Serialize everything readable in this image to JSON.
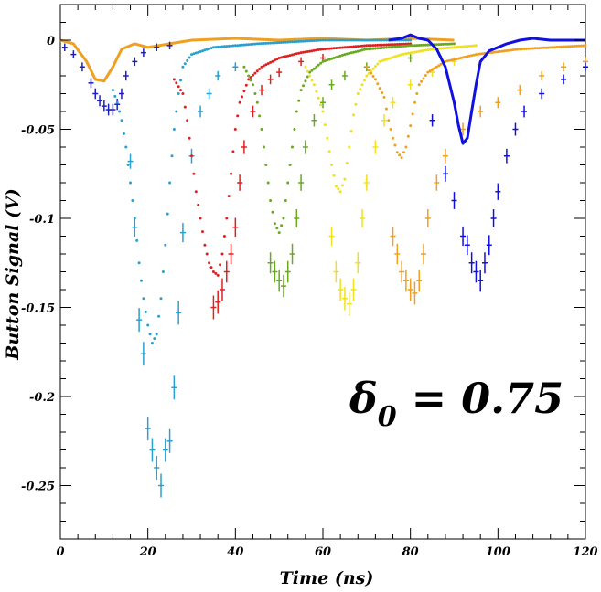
{
  "chart_data": {
    "type": "scatter",
    "xlabel": "Time (ns)",
    "ylabel": "Button Signal (V)",
    "xlim": [
      0,
      120
    ],
    "ylim": [
      -0.28,
      0.02
    ],
    "xticks": [
      0,
      20,
      40,
      60,
      80,
      100,
      120
    ],
    "yticks": [
      0,
      -0.05,
      -0.1,
      -0.15,
      -0.2,
      -0.25
    ],
    "xtick_labels": [
      "0",
      "20",
      "40",
      "60",
      "80",
      "100",
      "120"
    ],
    "ytick_labels": [
      "0",
      "-0.05",
      "-0.1",
      "-0.15",
      "-0.2",
      "-0.25"
    ],
    "grid": false,
    "annotation": {
      "symbol": "δ",
      "subscript": "0",
      "text": " = 0.75"
    },
    "colors": {
      "navy": "#1f1fbf",
      "sky": "#2aa0d0",
      "red": "#e02020",
      "green": "#6aa820",
      "yellow": "#f0e020",
      "orange": "#f0a020",
      "blue": "#1010e0"
    },
    "series": [
      {
        "color": "#f0a020",
        "style": "line",
        "points": [
          [
            0,
            0
          ],
          [
            3,
            -0.002
          ],
          [
            6,
            -0.012
          ],
          [
            8,
            -0.022
          ],
          [
            10,
            -0.023
          ],
          [
            12,
            -0.015
          ],
          [
            14,
            -0.005
          ],
          [
            17,
            -0.002
          ],
          [
            20,
            -0.004
          ],
          [
            25,
            -0.002
          ],
          [
            30,
            0
          ],
          [
            40,
            0.001
          ],
          [
            50,
            0
          ],
          [
            60,
            0.001
          ],
          [
            70,
            0
          ],
          [
            80,
            0.001
          ],
          [
            90,
            0
          ]
        ]
      },
      {
        "color": "#1f1fbf",
        "style": "cross",
        "points": [
          [
            1,
            -0.004
          ],
          [
            3,
            -0.008
          ],
          [
            5,
            -0.015
          ],
          [
            7,
            -0.024
          ],
          [
            8,
            -0.03
          ],
          [
            9,
            -0.034
          ],
          [
            10,
            -0.037
          ],
          [
            11,
            -0.039
          ],
          [
            12,
            -0.039
          ],
          [
            13,
            -0.036
          ],
          [
            14,
            -0.03
          ],
          [
            15,
            -0.02
          ],
          [
            17,
            -0.012
          ],
          [
            19,
            -0.007
          ],
          [
            22,
            -0.004
          ],
          [
            25,
            -0.003
          ]
        ]
      },
      {
        "color": "#2aa0d0",
        "style": "dots",
        "points": [
          [
            12,
            -0.028
          ],
          [
            13,
            -0.035
          ],
          [
            14,
            -0.045
          ],
          [
            15,
            -0.06
          ],
          [
            16,
            -0.08
          ],
          [
            17,
            -0.1
          ],
          [
            18,
            -0.125
          ],
          [
            19,
            -0.145
          ],
          [
            20,
            -0.16
          ],
          [
            21,
            -0.17
          ],
          [
            22,
            -0.165
          ],
          [
            23,
            -0.145
          ],
          [
            24,
            -0.115
          ],
          [
            25,
            -0.08
          ],
          [
            26,
            -0.05
          ],
          [
            27,
            -0.03
          ],
          [
            28,
            -0.015
          ],
          [
            30,
            -0.008
          ],
          [
            35,
            -0.004
          ],
          [
            45,
            -0.002
          ],
          [
            60,
            0
          ],
          [
            80,
            0
          ]
        ]
      },
      {
        "color": "#2aa0d0",
        "style": "cross",
        "points": [
          [
            16,
            -0.068
          ],
          [
            17,
            -0.105
          ],
          [
            18,
            -0.157
          ],
          [
            19,
            -0.176
          ],
          [
            20,
            -0.218
          ],
          [
            21,
            -0.23
          ],
          [
            22,
            -0.24
          ],
          [
            23,
            -0.25
          ],
          [
            24,
            -0.23
          ],
          [
            25,
            -0.225
          ],
          [
            26,
            -0.195
          ],
          [
            27,
            -0.153
          ],
          [
            28,
            -0.108
          ],
          [
            30,
            -0.065
          ],
          [
            32,
            -0.04
          ],
          [
            34,
            -0.03
          ],
          [
            36,
            -0.02
          ],
          [
            40,
            -0.015
          ]
        ]
      },
      {
        "color": "#e02020",
        "style": "dots",
        "points": [
          [
            26,
            -0.022
          ],
          [
            28,
            -0.03
          ],
          [
            29,
            -0.045
          ],
          [
            30,
            -0.065
          ],
          [
            31,
            -0.085
          ],
          [
            32,
            -0.1
          ],
          [
            33,
            -0.115
          ],
          [
            34,
            -0.125
          ],
          [
            35,
            -0.13
          ],
          [
            36,
            -0.132
          ],
          [
            37,
            -0.12
          ],
          [
            38,
            -0.1
          ],
          [
            39,
            -0.075
          ],
          [
            40,
            -0.05
          ],
          [
            41,
            -0.035
          ],
          [
            43,
            -0.022
          ],
          [
            46,
            -0.015
          ],
          [
            50,
            -0.01
          ],
          [
            55,
            -0.007
          ],
          [
            60,
            -0.005
          ],
          [
            70,
            -0.003
          ],
          [
            80,
            -0.002
          ]
        ]
      },
      {
        "color": "#e02020",
        "style": "cross",
        "points": [
          [
            35,
            -0.15
          ],
          [
            36,
            -0.147
          ],
          [
            37,
            -0.14
          ],
          [
            38,
            -0.13
          ],
          [
            39,
            -0.12
          ],
          [
            40,
            -0.105
          ],
          [
            41,
            -0.08
          ],
          [
            42,
            -0.06
          ],
          [
            44,
            -0.04
          ],
          [
            46,
            -0.028
          ],
          [
            48,
            -0.022
          ],
          [
            50,
            -0.018
          ],
          [
            55,
            -0.012
          ],
          [
            60,
            -0.01
          ]
        ]
      },
      {
        "color": "#6aa820",
        "style": "dots",
        "points": [
          [
            42,
            -0.015
          ],
          [
            44,
            -0.025
          ],
          [
            45,
            -0.035
          ],
          [
            46,
            -0.05
          ],
          [
            47,
            -0.07
          ],
          [
            48,
            -0.09
          ],
          [
            49,
            -0.103
          ],
          [
            50,
            -0.108
          ],
          [
            51,
            -0.1
          ],
          [
            52,
            -0.08
          ],
          [
            53,
            -0.06
          ],
          [
            54,
            -0.04
          ],
          [
            55,
            -0.028
          ],
          [
            57,
            -0.018
          ],
          [
            60,
            -0.012
          ],
          [
            65,
            -0.008
          ],
          [
            70,
            -0.005
          ],
          [
            80,
            -0.003
          ],
          [
            90,
            -0.002
          ]
        ]
      },
      {
        "color": "#6aa820",
        "style": "cross",
        "points": [
          [
            48,
            -0.125
          ],
          [
            49,
            -0.13
          ],
          [
            50,
            -0.135
          ],
          [
            51,
            -0.138
          ],
          [
            52,
            -0.13
          ],
          [
            53,
            -0.12
          ],
          [
            54,
            -0.1
          ],
          [
            55,
            -0.08
          ],
          [
            56,
            -0.06
          ],
          [
            58,
            -0.045
          ],
          [
            60,
            -0.035
          ],
          [
            62,
            -0.025
          ],
          [
            65,
            -0.02
          ],
          [
            70,
            -0.015
          ],
          [
            80,
            -0.01
          ]
        ]
      },
      {
        "color": "#f0e020",
        "style": "dots",
        "points": [
          [
            56,
            -0.015
          ],
          [
            58,
            -0.025
          ],
          [
            60,
            -0.04
          ],
          [
            61,
            -0.055
          ],
          [
            62,
            -0.07
          ],
          [
            63,
            -0.082
          ],
          [
            64,
            -0.085
          ],
          [
            65,
            -0.078
          ],
          [
            66,
            -0.06
          ],
          [
            67,
            -0.042
          ],
          [
            68,
            -0.03
          ],
          [
            70,
            -0.02
          ],
          [
            73,
            -0.012
          ],
          [
            78,
            -0.008
          ],
          [
            85,
            -0.005
          ],
          [
            95,
            -0.003
          ]
        ]
      },
      {
        "color": "#f0e020",
        "style": "cross",
        "points": [
          [
            62,
            -0.11
          ],
          [
            63,
            -0.13
          ],
          [
            64,
            -0.14
          ],
          [
            65,
            -0.145
          ],
          [
            66,
            -0.148
          ],
          [
            67,
            -0.14
          ],
          [
            68,
            -0.125
          ],
          [
            69,
            -0.1
          ],
          [
            70,
            -0.08
          ],
          [
            72,
            -0.06
          ],
          [
            74,
            -0.045
          ],
          [
            76,
            -0.035
          ],
          [
            80,
            -0.025
          ],
          [
            85,
            -0.018
          ],
          [
            90,
            -0.012
          ]
        ]
      },
      {
        "color": "#f0a020",
        "style": "dots",
        "points": [
          [
            70,
            -0.015
          ],
          [
            72,
            -0.022
          ],
          [
            74,
            -0.032
          ],
          [
            75,
            -0.045
          ],
          [
            76,
            -0.055
          ],
          [
            77,
            -0.063
          ],
          [
            78,
            -0.066
          ],
          [
            79,
            -0.06
          ],
          [
            80,
            -0.048
          ],
          [
            81,
            -0.035
          ],
          [
            82,
            -0.025
          ],
          [
            84,
            -0.018
          ],
          [
            88,
            -0.012
          ],
          [
            95,
            -0.008
          ],
          [
            105,
            -0.005
          ],
          [
            120,
            -0.003
          ]
        ]
      },
      {
        "color": "#f0a020",
        "style": "cross",
        "points": [
          [
            76,
            -0.11
          ],
          [
            77,
            -0.12
          ],
          [
            78,
            -0.13
          ],
          [
            79,
            -0.135
          ],
          [
            80,
            -0.14
          ],
          [
            81,
            -0.142
          ],
          [
            82,
            -0.135
          ],
          [
            83,
            -0.12
          ],
          [
            84,
            -0.1
          ],
          [
            86,
            -0.08
          ],
          [
            88,
            -0.065
          ],
          [
            92,
            -0.05
          ],
          [
            96,
            -0.04
          ],
          [
            100,
            -0.035
          ],
          [
            105,
            -0.028
          ],
          [
            110,
            -0.02
          ],
          [
            115,
            -0.015
          ],
          [
            120,
            -0.012
          ]
        ]
      },
      {
        "color": "#1010e0",
        "style": "line",
        "points": [
          [
            75,
            0
          ],
          [
            78,
            0.001
          ],
          [
            80,
            0.003
          ],
          [
            82,
            0.001
          ],
          [
            84,
            0
          ],
          [
            86,
            -0.005
          ],
          [
            88,
            -0.015
          ],
          [
            89,
            -0.025
          ],
          [
            90,
            -0.035
          ],
          [
            91,
            -0.048
          ],
          [
            92,
            -0.058
          ],
          [
            93,
            -0.055
          ],
          [
            94,
            -0.04
          ],
          [
            95,
            -0.025
          ],
          [
            96,
            -0.012
          ],
          [
            98,
            -0.006
          ],
          [
            100,
            -0.004
          ],
          [
            102,
            -0.002
          ],
          [
            105,
            0
          ],
          [
            108,
            0.001
          ],
          [
            112,
            0
          ],
          [
            120,
            0
          ]
        ]
      },
      {
        "color": "#1010e0",
        "style": "cross",
        "points": [
          [
            85,
            -0.045
          ],
          [
            88,
            -0.075
          ],
          [
            90,
            -0.09
          ],
          [
            92,
            -0.11
          ],
          [
            93,
            -0.115
          ],
          [
            94,
            -0.125
          ],
          [
            95,
            -0.13
          ],
          [
            96,
            -0.135
          ],
          [
            97,
            -0.125
          ],
          [
            98,
            -0.115
          ],
          [
            99,
            -0.1
          ],
          [
            100,
            -0.085
          ],
          [
            102,
            -0.065
          ],
          [
            104,
            -0.05
          ],
          [
            106,
            -0.04
          ],
          [
            110,
            -0.03
          ],
          [
            115,
            -0.022
          ],
          [
            120,
            -0.015
          ]
        ]
      }
    ]
  }
}
